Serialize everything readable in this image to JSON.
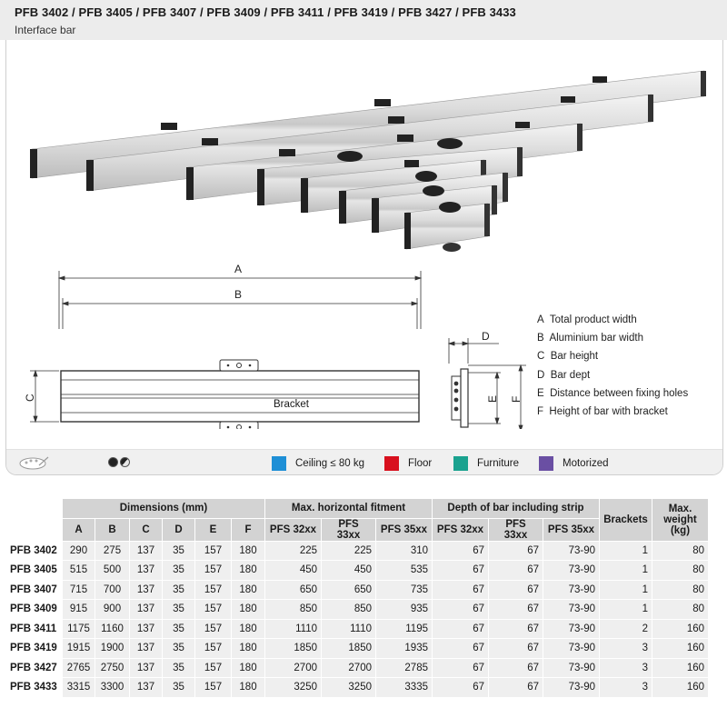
{
  "header": {
    "title": "PFB 3402 / PFB 3405 / PFB 3407 / PFB 3409 / PFB 3411 / PFB 3419 / PFB 3427 / PFB 3433",
    "subtitle": "Interface bar"
  },
  "drawing": {
    "dim_a": "A",
    "dim_b": "B",
    "dim_c": "C",
    "dim_d": "D",
    "dim_e": "E",
    "dim_f": "F",
    "bracket_label": "Bracket"
  },
  "legend": [
    {
      "key": "A",
      "text": "Total product width"
    },
    {
      "key": "B",
      "text": "Aluminium bar width"
    },
    {
      "key": "C",
      "text": "Bar height"
    },
    {
      "key": "D",
      "text": "Bar dept"
    },
    {
      "key": "E",
      "text": "Distance between fixing holes"
    },
    {
      "key": "F",
      "text": "Height of bar with bracket"
    }
  ],
  "mounting": [
    {
      "label": "Ceiling ≤ 80 kg",
      "color": "#1e8fd6"
    },
    {
      "label": "Floor",
      "color": "#d8101e"
    },
    {
      "label": "Furniture",
      "color": "#1aa28f"
    },
    {
      "label": "Motorized",
      "color": "#6a4fa3"
    }
  ],
  "table": {
    "group_headers": {
      "dimensions": "Dimensions (mm)",
      "fitment": "Max. horizontal fitment",
      "depth": "Depth of bar including strip",
      "brackets": "Brackets",
      "weight": "Max. weight (kg)"
    },
    "sub_headers": [
      "A",
      "B",
      "C",
      "D",
      "E",
      "F",
      "PFS 32xx",
      "PFS 33xx",
      "PFS 35xx",
      "PFS 32xx",
      "PFS 33xx",
      "PFS 35xx"
    ],
    "rows": [
      {
        "model": "PFB 3402",
        "cells": [
          "290",
          "275",
          "137",
          "35",
          "157",
          "180",
          "225",
          "225",
          "310",
          "67",
          "67",
          "73-90",
          "1",
          "80"
        ]
      },
      {
        "model": "PFB 3405",
        "cells": [
          "515",
          "500",
          "137",
          "35",
          "157",
          "180",
          "450",
          "450",
          "535",
          "67",
          "67",
          "73-90",
          "1",
          "80"
        ]
      },
      {
        "model": "PFB 3407",
        "cells": [
          "715",
          "700",
          "137",
          "35",
          "157",
          "180",
          "650",
          "650",
          "735",
          "67",
          "67",
          "73-90",
          "1",
          "80"
        ]
      },
      {
        "model": "PFB 3409",
        "cells": [
          "915",
          "900",
          "137",
          "35",
          "157",
          "180",
          "850",
          "850",
          "935",
          "67",
          "67",
          "73-90",
          "1",
          "80"
        ]
      },
      {
        "model": "PFB 3411",
        "cells": [
          "1175",
          "1160",
          "137",
          "35",
          "157",
          "180",
          "1110",
          "1110",
          "1195",
          "67",
          "67",
          "73-90",
          "2",
          "160"
        ]
      },
      {
        "model": "PFB 3419",
        "cells": [
          "1915",
          "1900",
          "137",
          "35",
          "157",
          "180",
          "1850",
          "1850",
          "1935",
          "67",
          "67",
          "73-90",
          "3",
          "160"
        ]
      },
      {
        "model": "PFB 3427",
        "cells": [
          "2765",
          "2750",
          "137",
          "35",
          "157",
          "180",
          "2700",
          "2700",
          "2785",
          "67",
          "67",
          "73-90",
          "3",
          "160"
        ]
      },
      {
        "model": "PFB 3433",
        "cells": [
          "3315",
          "3300",
          "137",
          "35",
          "157",
          "180",
          "3250",
          "3250",
          "3335",
          "67",
          "67",
          "73-90",
          "3",
          "160"
        ]
      }
    ]
  }
}
